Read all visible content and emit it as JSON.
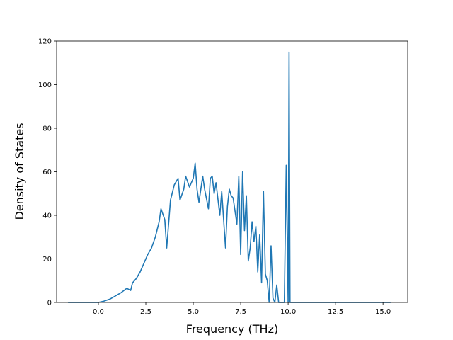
{
  "chart_data": {
    "type": "line",
    "title": "",
    "xlabel": "Frequency (THz)",
    "ylabel": "Density of States",
    "xlim": [
      -2.2,
      16.3
    ],
    "ylim": [
      0,
      120
    ],
    "xticks": [
      0.0,
      2.5,
      5.0,
      7.5,
      10.0,
      12.5,
      15.0
    ],
    "xtick_labels": [
      "0.0",
      "2.5",
      "5.0",
      "7.5",
      "10.0",
      "12.5",
      "15.0"
    ],
    "yticks": [
      0,
      20,
      40,
      60,
      80,
      100,
      120
    ],
    "ytick_labels": [
      "0",
      "20",
      "40",
      "60",
      "80",
      "100",
      "120"
    ],
    "grid": false,
    "legend": "none",
    "series": [
      {
        "color": "#1f77b4",
        "x": [
          -1.6,
          -0.5,
          0.0,
          0.3,
          0.6,
          0.9,
          1.2,
          1.5,
          1.7,
          1.8,
          2.0,
          2.2,
          2.4,
          2.6,
          2.8,
          3.0,
          3.2,
          3.3,
          3.5,
          3.6,
          3.8,
          4.0,
          4.2,
          4.3,
          4.5,
          4.6,
          4.8,
          5.0,
          5.1,
          5.2,
          5.3,
          5.5,
          5.6,
          5.8,
          5.9,
          6.0,
          6.1,
          6.2,
          6.4,
          6.5,
          6.7,
          6.8,
          6.9,
          7.0,
          7.1,
          7.3,
          7.4,
          7.5,
          7.6,
          7.7,
          7.8,
          7.9,
          8.0,
          8.1,
          8.2,
          8.3,
          8.4,
          8.5,
          8.6,
          8.7,
          8.8,
          8.9,
          9.0,
          9.1,
          9.2,
          9.3,
          9.4,
          9.5,
          9.6,
          9.8,
          9.9,
          10.0,
          10.05,
          10.1,
          10.15,
          10.2,
          10.3,
          12.0,
          14.0,
          15.4
        ],
        "y": [
          0,
          0,
          0,
          0.6,
          1.5,
          3,
          4.5,
          6.5,
          5.5,
          9,
          11,
          14,
          18,
          22,
          25,
          30,
          37,
          43,
          38,
          25,
          47,
          54,
          57,
          47,
          52,
          58,
          53,
          57,
          64,
          52,
          46,
          58,
          52,
          43,
          57,
          58,
          50,
          55,
          40,
          51,
          25,
          44,
          52,
          49,
          48,
          36,
          58,
          22,
          60,
          33,
          49,
          19,
          25,
          37,
          28,
          35,
          14,
          31,
          9,
          51,
          13,
          10,
          0,
          26,
          2,
          0,
          8,
          0,
          0,
          0,
          63,
          0,
          115,
          0,
          0,
          0,
          0,
          0,
          0,
          0
        ]
      }
    ]
  }
}
